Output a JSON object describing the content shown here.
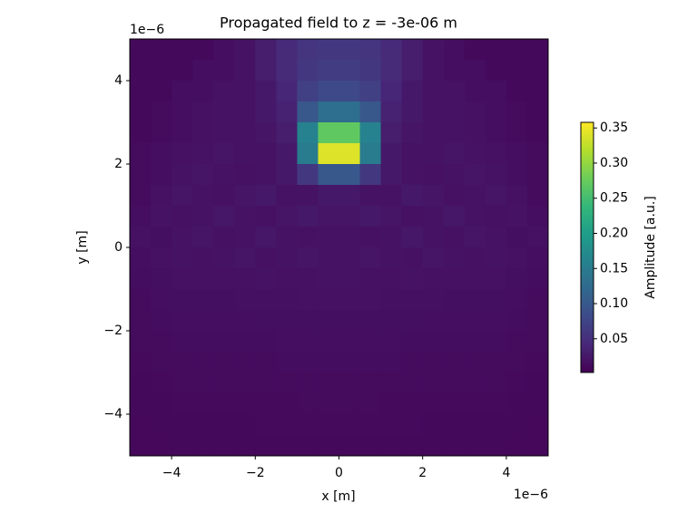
{
  "chart_data": {
    "type": "heatmap",
    "title": "Propagated field to z = -3e-06 m",
    "xlabel": "x [m]",
    "ylabel": "y [m]",
    "x_offset_label": "1e−6",
    "y_offset_label": "1e−6",
    "xlim": [
      -5e-06,
      5e-06
    ],
    "ylim": [
      -5e-06,
      5e-06
    ],
    "xticks": [
      {
        "value": -4e-06,
        "label": "−4"
      },
      {
        "value": -2e-06,
        "label": "−2"
      },
      {
        "value": 0,
        "label": "0"
      },
      {
        "value": 2e-06,
        "label": "2"
      },
      {
        "value": 4e-06,
        "label": "4"
      }
    ],
    "yticks": [
      {
        "value": -4e-06,
        "label": "−4"
      },
      {
        "value": -2e-06,
        "label": "−2"
      },
      {
        "value": 0,
        "label": "0"
      },
      {
        "value": 2e-06,
        "label": "2"
      },
      {
        "value": 4e-06,
        "label": "4"
      }
    ],
    "colormap": "viridis",
    "z": [
      [
        0.01,
        0.01,
        0.01,
        0.01,
        0.015,
        0.02,
        0.03,
        0.045,
        0.055,
        0.06,
        0.06,
        0.055,
        0.045,
        0.03,
        0.02,
        0.015,
        0.01,
        0.01,
        0.01,
        0.01
      ],
      [
        0.01,
        0.01,
        0.01,
        0.015,
        0.015,
        0.02,
        0.03,
        0.045,
        0.06,
        0.065,
        0.065,
        0.06,
        0.045,
        0.03,
        0.02,
        0.015,
        0.015,
        0.01,
        0.01,
        0.01
      ],
      [
        0.01,
        0.01,
        0.015,
        0.015,
        0.02,
        0.02,
        0.025,
        0.04,
        0.07,
        0.08,
        0.08,
        0.07,
        0.04,
        0.025,
        0.02,
        0.02,
        0.015,
        0.015,
        0.01,
        0.01
      ],
      [
        0.01,
        0.012,
        0.015,
        0.018,
        0.02,
        0.02,
        0.025,
        0.035,
        0.1,
        0.13,
        0.13,
        0.1,
        0.035,
        0.025,
        0.02,
        0.02,
        0.018,
        0.015,
        0.012,
        0.01
      ],
      [
        0.01,
        0.012,
        0.015,
        0.018,
        0.02,
        0.02,
        0.022,
        0.03,
        0.16,
        0.27,
        0.27,
        0.16,
        0.03,
        0.022,
        0.02,
        0.02,
        0.018,
        0.015,
        0.012,
        0.01
      ],
      [
        0.012,
        0.015,
        0.018,
        0.02,
        0.022,
        0.02,
        0.02,
        0.025,
        0.15,
        0.34,
        0.34,
        0.15,
        0.025,
        0.02,
        0.02,
        0.022,
        0.02,
        0.018,
        0.015,
        0.012
      ],
      [
        0.012,
        0.015,
        0.02,
        0.022,
        0.02,
        0.018,
        0.02,
        0.025,
        0.06,
        0.1,
        0.1,
        0.06,
        0.025,
        0.02,
        0.018,
        0.02,
        0.022,
        0.02,
        0.015,
        0.012
      ],
      [
        0.012,
        0.018,
        0.022,
        0.02,
        0.018,
        0.022,
        0.025,
        0.02,
        0.02,
        0.025,
        0.025,
        0.02,
        0.02,
        0.025,
        0.022,
        0.018,
        0.02,
        0.022,
        0.018,
        0.012
      ],
      [
        0.015,
        0.02,
        0.018,
        0.02,
        0.024,
        0.02,
        0.018,
        0.022,
        0.025,
        0.022,
        0.022,
        0.025,
        0.022,
        0.018,
        0.02,
        0.024,
        0.02,
        0.018,
        0.02,
        0.015
      ],
      [
        0.018,
        0.016,
        0.02,
        0.022,
        0.018,
        0.02,
        0.024,
        0.02,
        0.018,
        0.02,
        0.02,
        0.018,
        0.02,
        0.024,
        0.02,
        0.018,
        0.022,
        0.02,
        0.016,
        0.018
      ],
      [
        0.015,
        0.018,
        0.02,
        0.018,
        0.02,
        0.022,
        0.018,
        0.02,
        0.022,
        0.02,
        0.02,
        0.022,
        0.02,
        0.018,
        0.022,
        0.02,
        0.018,
        0.02,
        0.018,
        0.015
      ],
      [
        0.014,
        0.016,
        0.018,
        0.018,
        0.018,
        0.018,
        0.02,
        0.018,
        0.018,
        0.02,
        0.02,
        0.018,
        0.018,
        0.02,
        0.018,
        0.018,
        0.018,
        0.018,
        0.016,
        0.014
      ],
      [
        0.013,
        0.015,
        0.016,
        0.016,
        0.016,
        0.017,
        0.017,
        0.017,
        0.018,
        0.018,
        0.018,
        0.018,
        0.017,
        0.017,
        0.017,
        0.016,
        0.016,
        0.016,
        0.015,
        0.013
      ],
      [
        0.012,
        0.014,
        0.015,
        0.015,
        0.015,
        0.015,
        0.016,
        0.016,
        0.016,
        0.016,
        0.016,
        0.016,
        0.016,
        0.016,
        0.015,
        0.015,
        0.015,
        0.015,
        0.014,
        0.012
      ],
      [
        0.012,
        0.013,
        0.014,
        0.014,
        0.014,
        0.014,
        0.014,
        0.015,
        0.015,
        0.015,
        0.015,
        0.015,
        0.015,
        0.014,
        0.014,
        0.014,
        0.014,
        0.014,
        0.013,
        0.012
      ],
      [
        0.011,
        0.012,
        0.013,
        0.013,
        0.013,
        0.013,
        0.013,
        0.014,
        0.014,
        0.014,
        0.014,
        0.014,
        0.014,
        0.013,
        0.013,
        0.013,
        0.013,
        0.013,
        0.012,
        0.011
      ],
      [
        0.01,
        0.011,
        0.012,
        0.012,
        0.012,
        0.012,
        0.012,
        0.012,
        0.013,
        0.013,
        0.013,
        0.013,
        0.012,
        0.012,
        0.012,
        0.012,
        0.012,
        0.012,
        0.011,
        0.01
      ],
      [
        0.01,
        0.01,
        0.011,
        0.011,
        0.011,
        0.011,
        0.011,
        0.011,
        0.012,
        0.012,
        0.012,
        0.012,
        0.011,
        0.011,
        0.011,
        0.011,
        0.011,
        0.011,
        0.01,
        0.01
      ],
      [
        0.009,
        0.01,
        0.01,
        0.01,
        0.01,
        0.01,
        0.011,
        0.011,
        0.011,
        0.011,
        0.011,
        0.011,
        0.011,
        0.011,
        0.01,
        0.01,
        0.01,
        0.01,
        0.01,
        0.009
      ],
      [
        0.009,
        0.009,
        0.01,
        0.01,
        0.01,
        0.01,
        0.01,
        0.01,
        0.01,
        0.01,
        0.01,
        0.01,
        0.01,
        0.01,
        0.01,
        0.01,
        0.01,
        0.01,
        0.009,
        0.009
      ]
    ],
    "colorbar": {
      "label": "Amplitude [a.u.]",
      "clim": [
        0.002,
        0.358
      ],
      "ticks": [
        0.05,
        0.1,
        0.15,
        0.2,
        0.25,
        0.3,
        0.35
      ],
      "tick_labels": [
        "0.05",
        "0.10",
        "0.15",
        "0.20",
        "0.25",
        "0.30",
        "0.35"
      ]
    }
  }
}
